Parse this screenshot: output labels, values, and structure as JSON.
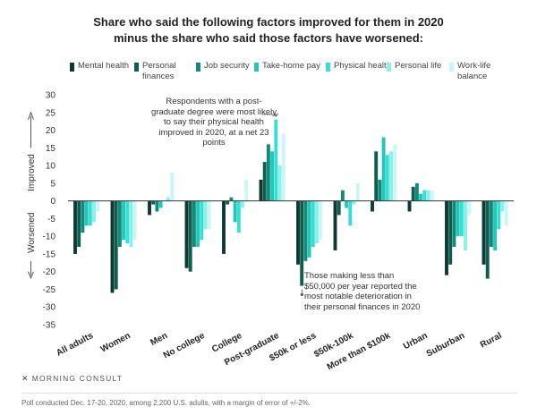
{
  "title_lines": [
    "Share who said the following factors improved for them in 2020",
    "minus the share who said those factors have worsened:"
  ],
  "legend": [
    {
      "label": "Mental health",
      "color": "#0d3b33"
    },
    {
      "label": "Personal finances",
      "color": "#0f5e4d"
    },
    {
      "label": "Job security",
      "color": "#118a7c"
    },
    {
      "label": "Take-home pay",
      "color": "#22c7b8"
    },
    {
      "label": "Physical health",
      "color": "#33e0d6"
    },
    {
      "label": "Personal life",
      "color": "#8cf0e9"
    },
    {
      "label": "Work-life balance",
      "color": "#c9f7f4"
    }
  ],
  "annotations": {
    "postgrad": "Respondents with a post-graduate degree were most likely to say their physical health improved in 2020, at a net 23 points",
    "low_income": "Those making less than $50,000 per year reported the most notable deterioration in their personal finances in 2020"
  },
  "axis_side_labels": {
    "improved": "Improved",
    "worsened": "Worsened"
  },
  "brand": "MORNING CONSULT",
  "source": "Poll conducted Dec. 17-20, 2020, among 2,200 U.S. adults, with a margin of error of +/-2%.",
  "chart_data": {
    "type": "bar",
    "title": "Share who said the following factors improved for them in 2020 minus the share who said those factors have worsened:",
    "categories": [
      "All adults",
      "Women",
      "Men",
      "No college",
      "College",
      "Post-graduate",
      "$50k or less",
      "$50k-100k",
      "More than $100k",
      "Urban",
      "Suburban",
      "Rural"
    ],
    "ylim": [
      -35,
      30
    ],
    "yticks": [
      30,
      25,
      20,
      15,
      10,
      5,
      0,
      -5,
      -10,
      -15,
      -20,
      -25,
      -30,
      -35
    ],
    "grid": false,
    "legend_position": "top",
    "series": [
      {
        "name": "Mental health",
        "values": [
          -15,
          -26,
          -4,
          -19,
          -15,
          6,
          -18,
          -14,
          -3,
          -3,
          -21,
          -18
        ]
      },
      {
        "name": "Personal finances",
        "values": [
          -13,
          -25,
          -1,
          -20,
          -1,
          11,
          -24,
          -4,
          14,
          4,
          -18,
          -22
        ]
      },
      {
        "name": "Job security",
        "values": [
          -9,
          -13,
          -3,
          -13,
          1,
          16,
          -17,
          3,
          6,
          5,
          -13,
          -13
        ]
      },
      {
        "name": "Take-home pay",
        "values": [
          -7,
          -11,
          -2,
          -13,
          -6,
          14,
          -16,
          -2,
          18,
          2,
          -10,
          -14
        ]
      },
      {
        "name": "Physical health",
        "values": [
          -7,
          -12,
          0,
          -11,
          -9,
          23,
          -13,
          -7,
          13,
          3,
          -10,
          -8
        ]
      },
      {
        "name": "Personal life",
        "values": [
          -6,
          -13,
          1,
          -8,
          -2,
          10,
          -12,
          -1,
          14,
          3,
          -14,
          -3
        ]
      },
      {
        "name": "Work-life balance",
        "values": [
          -3,
          -11,
          8,
          -8,
          6,
          19,
          -11,
          5,
          16,
          3,
          -4,
          -7
        ]
      }
    ]
  }
}
